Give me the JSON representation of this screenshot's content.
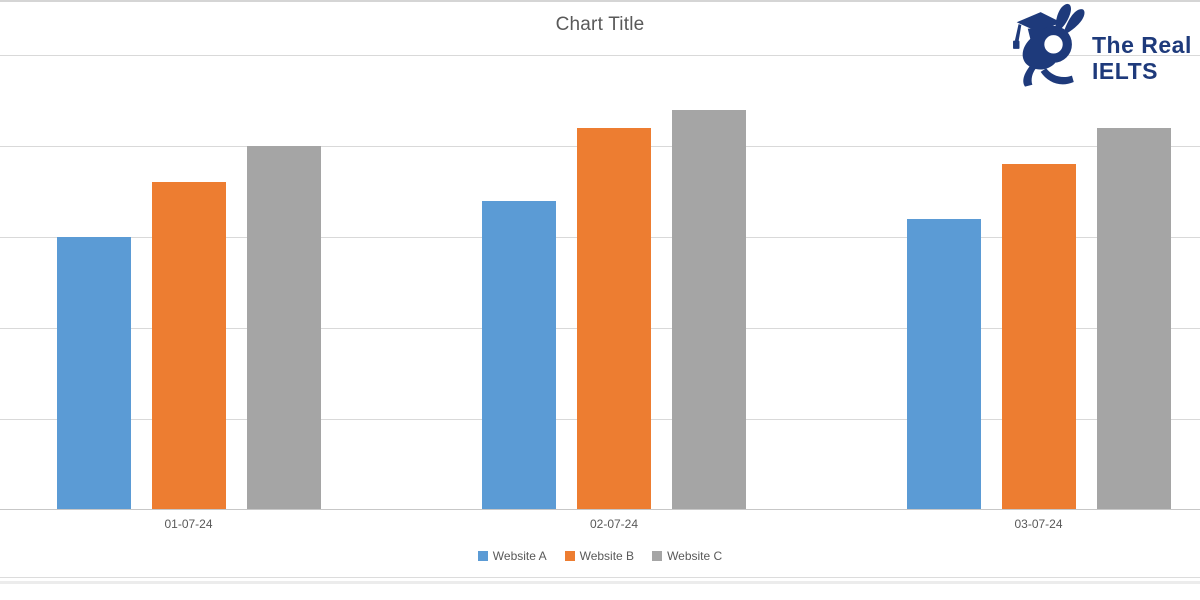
{
  "chart_data": {
    "type": "bar",
    "title": "Chart Title",
    "categories": [
      "01-07-24",
      "02-07-24",
      "03-07-24"
    ],
    "series": [
      {
        "name": "Website A",
        "color": "#5B9BD5",
        "values": [
          3.0,
          3.4,
          3.2
        ]
      },
      {
        "name": "Website B",
        "color": "#ED7D31",
        "values": [
          3.6,
          4.2,
          3.8
        ]
      },
      {
        "name": "Website C",
        "color": "#A5A5A5",
        "values": [
          4.0,
          4.4,
          4.2
        ]
      }
    ],
    "xlabel": "",
    "ylabel": "",
    "ylim": [
      0,
      5
    ],
    "y_ticks_labeled": false,
    "gridlines": "horizontal",
    "legend_position": "bottom",
    "title_color": "#595959",
    "axis_text_color": "#595959",
    "gridline_color": "#d9d9d9"
  },
  "logo": {
    "line1": "The Real",
    "line2": "IELTS",
    "color": "#1E3A7B",
    "mascot": "rabbit-with-graduation-cap"
  }
}
